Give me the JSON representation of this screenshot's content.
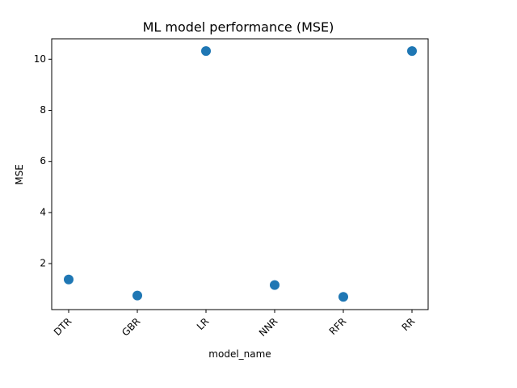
{
  "chart_data": {
    "type": "scatter",
    "title": "ML model performance (MSE)",
    "xlabel": "model_name",
    "ylabel": "MSE",
    "categories": [
      "DTR",
      "GBR",
      "LR",
      "NNR",
      "RFR",
      "RR"
    ],
    "series": [
      {
        "values": [
          1.38,
          0.75,
          10.32,
          1.16,
          0.7,
          10.32
        ]
      }
    ],
    "ylim": [
      0.2,
      10.8
    ],
    "yticks": [
      2,
      4,
      6,
      8,
      10
    ],
    "ytick_labels": [
      "2",
      "4",
      "6",
      "8",
      "10"
    ],
    "grid": false,
    "color": "#1f77b4"
  }
}
